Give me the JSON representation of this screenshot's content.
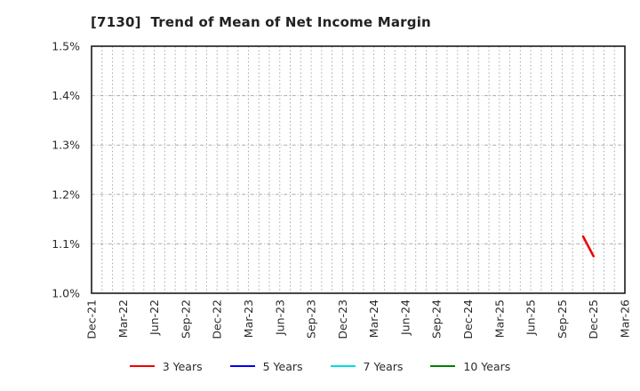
{
  "title": "[7130]  Trend of Mean of Net Income Margin",
  "chart_data": {
    "type": "line",
    "title": "[7130]  Trend of Mean of Net Income Margin",
    "xlabel": "",
    "ylabel": "",
    "ylim": [
      1.0,
      1.5
    ],
    "y_ticks": [
      {
        "label": "1.0%",
        "value": 1.0
      },
      {
        "label": "1.1%",
        "value": 1.1
      },
      {
        "label": "1.2%",
        "value": 1.2
      },
      {
        "label": "1.3%",
        "value": 1.3
      },
      {
        "label": "1.4%",
        "value": 1.4
      },
      {
        "label": "1.5%",
        "value": 1.5
      }
    ],
    "x_months_total": 51,
    "x_tick_labels": [
      {
        "label": "Dec-21",
        "month_index": 0
      },
      {
        "label": "Mar-22",
        "month_index": 3
      },
      {
        "label": "Jun-22",
        "month_index": 6
      },
      {
        "label": "Sep-22",
        "month_index": 9
      },
      {
        "label": "Dec-22",
        "month_index": 12
      },
      {
        "label": "Mar-23",
        "month_index": 15
      },
      {
        "label": "Jun-23",
        "month_index": 18
      },
      {
        "label": "Sep-23",
        "month_index": 21
      },
      {
        "label": "Dec-23",
        "month_index": 24
      },
      {
        "label": "Mar-24",
        "month_index": 27
      },
      {
        "label": "Jun-24",
        "month_index": 30
      },
      {
        "label": "Sep-24",
        "month_index": 33
      },
      {
        "label": "Dec-24",
        "month_index": 36
      },
      {
        "label": "Mar-25",
        "month_index": 39
      },
      {
        "label": "Jun-25",
        "month_index": 42
      },
      {
        "label": "Sep-25",
        "month_index": 45
      },
      {
        "label": "Dec-25",
        "month_index": 48
      },
      {
        "label": "Mar-26",
        "month_index": 51
      }
    ],
    "grid": {
      "vertical": "monthly, dotted, light gray",
      "horizontal": "each 0.1%, dash-dot, light gray"
    },
    "legend_position": "bottom-center",
    "series": [
      {
        "name": "3 Years",
        "color": "#f00000",
        "points": [
          {
            "x_label": "Nov-25",
            "month_index": 47,
            "y": 1.115
          },
          {
            "x_label": "Dec-25",
            "month_index": 48,
            "y": 1.075
          }
        ]
      },
      {
        "name": "5 Years",
        "color": "#0000f0",
        "points": []
      },
      {
        "name": "7 Years",
        "color": "#00dddd",
        "points": []
      },
      {
        "name": "10 Years",
        "color": "#008000",
        "points": []
      }
    ],
    "colors": {
      "border": "#1a1a1a",
      "gridline": "#ababab",
      "tick_label": "#2b2b2b",
      "title": "#222222"
    }
  }
}
